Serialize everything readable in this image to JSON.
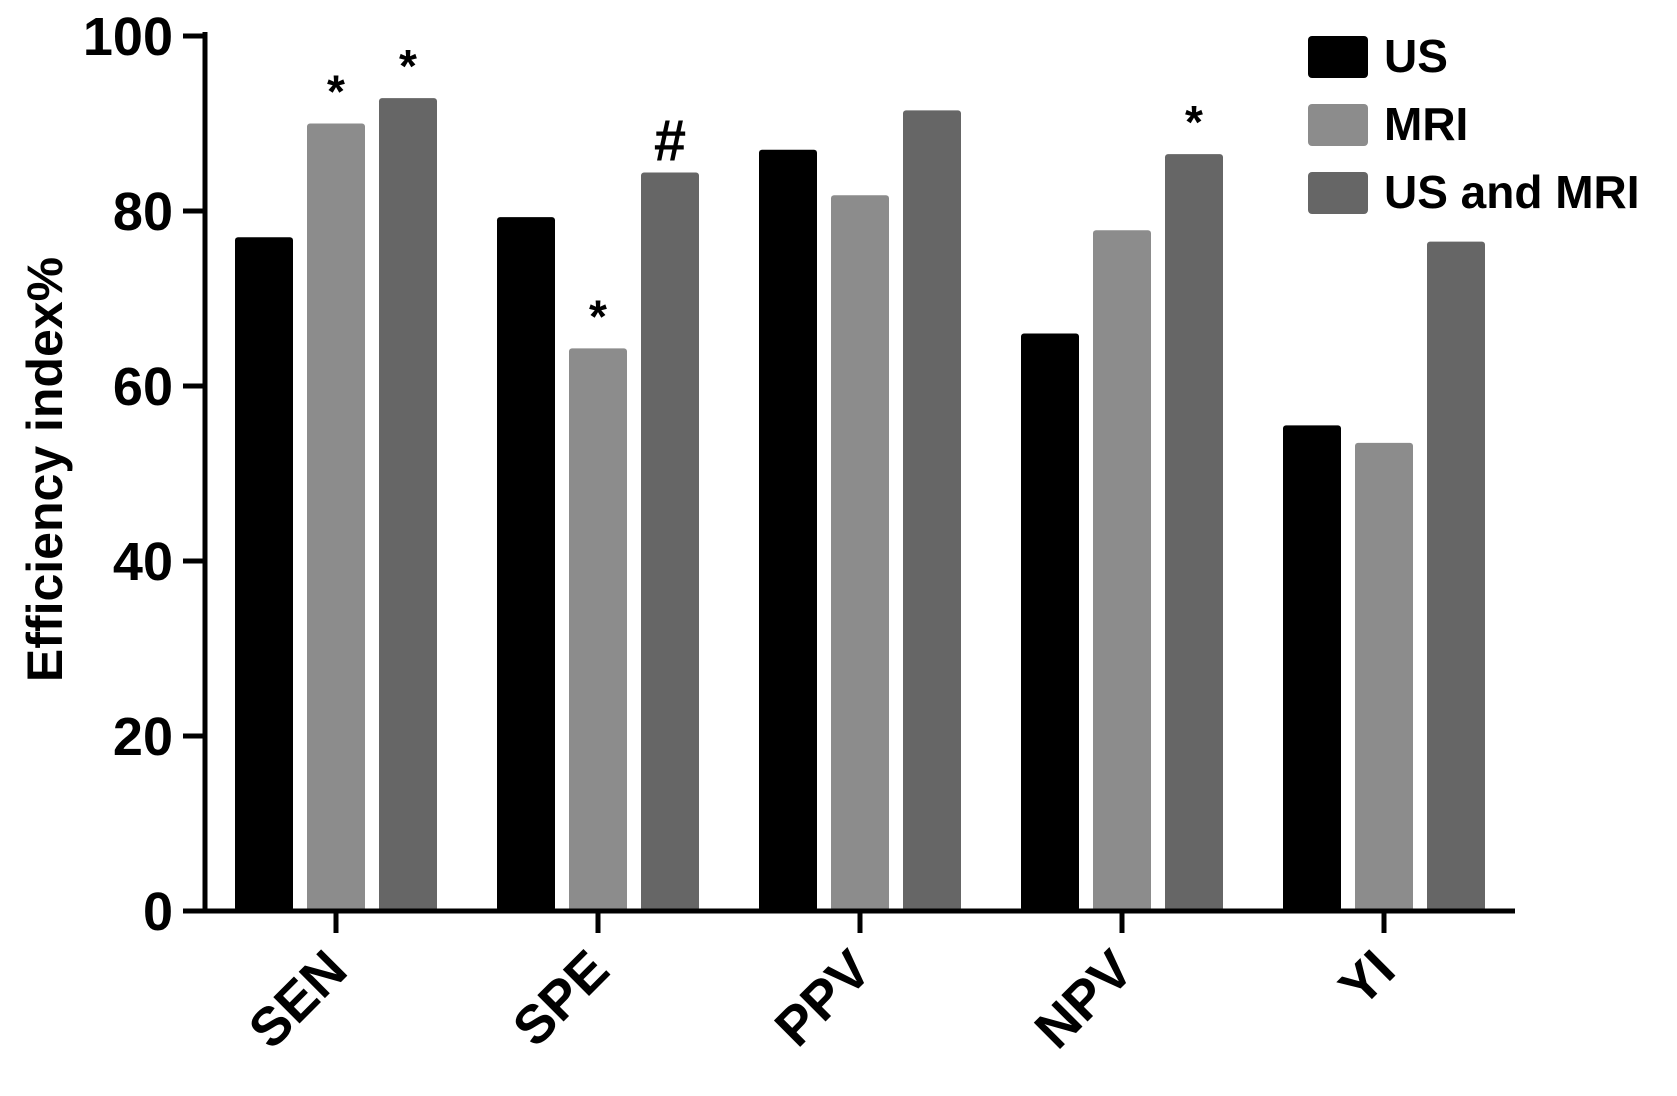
{
  "chart_data": {
    "type": "bar",
    "title": "",
    "xlabel": "",
    "ylabel": "Efficiency index%",
    "ylim": [
      0,
      100
    ],
    "yticks": [
      0,
      20,
      40,
      60,
      80,
      100
    ],
    "categories": [
      "SEN",
      "SPE",
      "PPV",
      "NPV",
      "YI"
    ],
    "series": [
      {
        "name": "US",
        "color": "#000000",
        "values": [
          77.0,
          79.3,
          87.0,
          66.0,
          55.5
        ]
      },
      {
        "name": "MRI",
        "color": "#8c8c8c",
        "values": [
          90.0,
          64.3,
          81.8,
          77.8,
          53.5
        ]
      },
      {
        "name": "US and MRI",
        "color": "#666666",
        "values": [
          92.9,
          84.4,
          91.5,
          86.5,
          76.5
        ]
      }
    ],
    "annotations": [
      {
        "category": "SEN",
        "series": "MRI",
        "text": "*"
      },
      {
        "category": "SEN",
        "series": "US and MRI",
        "text": "*"
      },
      {
        "category": "SPE",
        "series": "MRI",
        "text": "*"
      },
      {
        "category": "SPE",
        "series": "US and MRI",
        "text": "#"
      },
      {
        "category": "NPV",
        "series": "US and MRI",
        "text": "*"
      }
    ],
    "legend_position": "top-right",
    "grid": false
  }
}
